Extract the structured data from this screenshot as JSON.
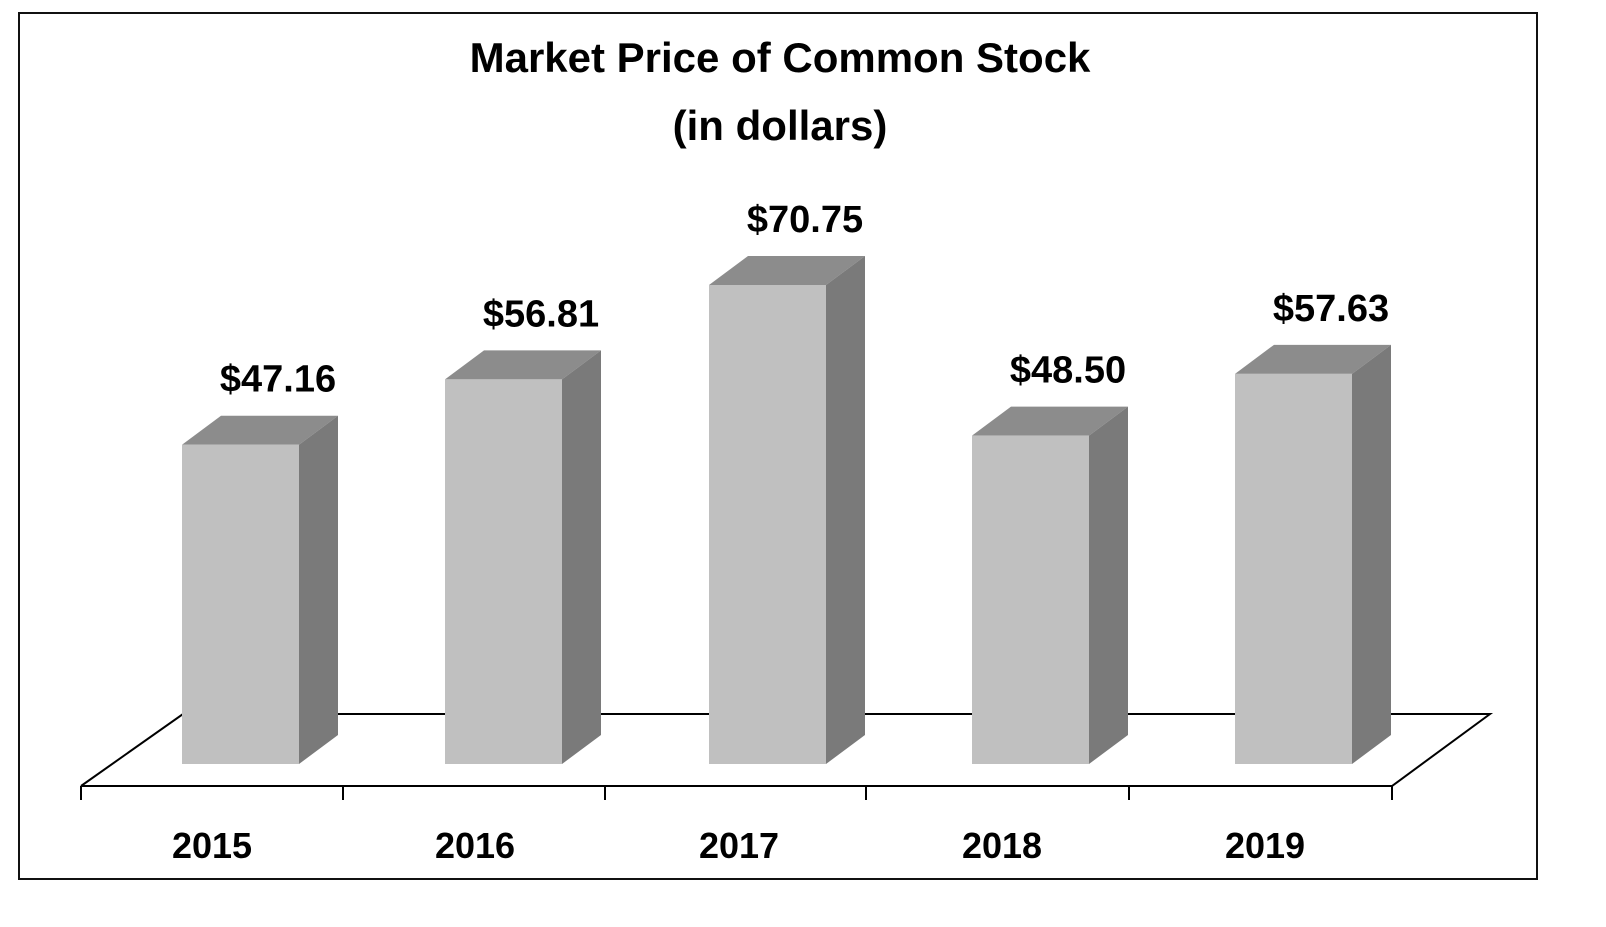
{
  "chart_data": {
    "type": "bar",
    "title": "Market Price of Common Stock",
    "subtitle": "(in dollars)",
    "categories": [
      "2015",
      "2016",
      "2017",
      "2018",
      "2019"
    ],
    "values": [
      47.16,
      56.81,
      70.75,
      48.5,
      57.63
    ],
    "data_labels": [
      "$47.16",
      "$56.81",
      "$70.75",
      "$48.50",
      "$57.63"
    ],
    "xlabel": "",
    "ylabel": "",
    "style": "3d-column",
    "grid": false,
    "legend": null
  },
  "colors": {
    "bar_front": "#c0c0c0",
    "bar_top": "#8c8c8c",
    "bar_side": "#7a7a7a",
    "axis": "#000000"
  }
}
